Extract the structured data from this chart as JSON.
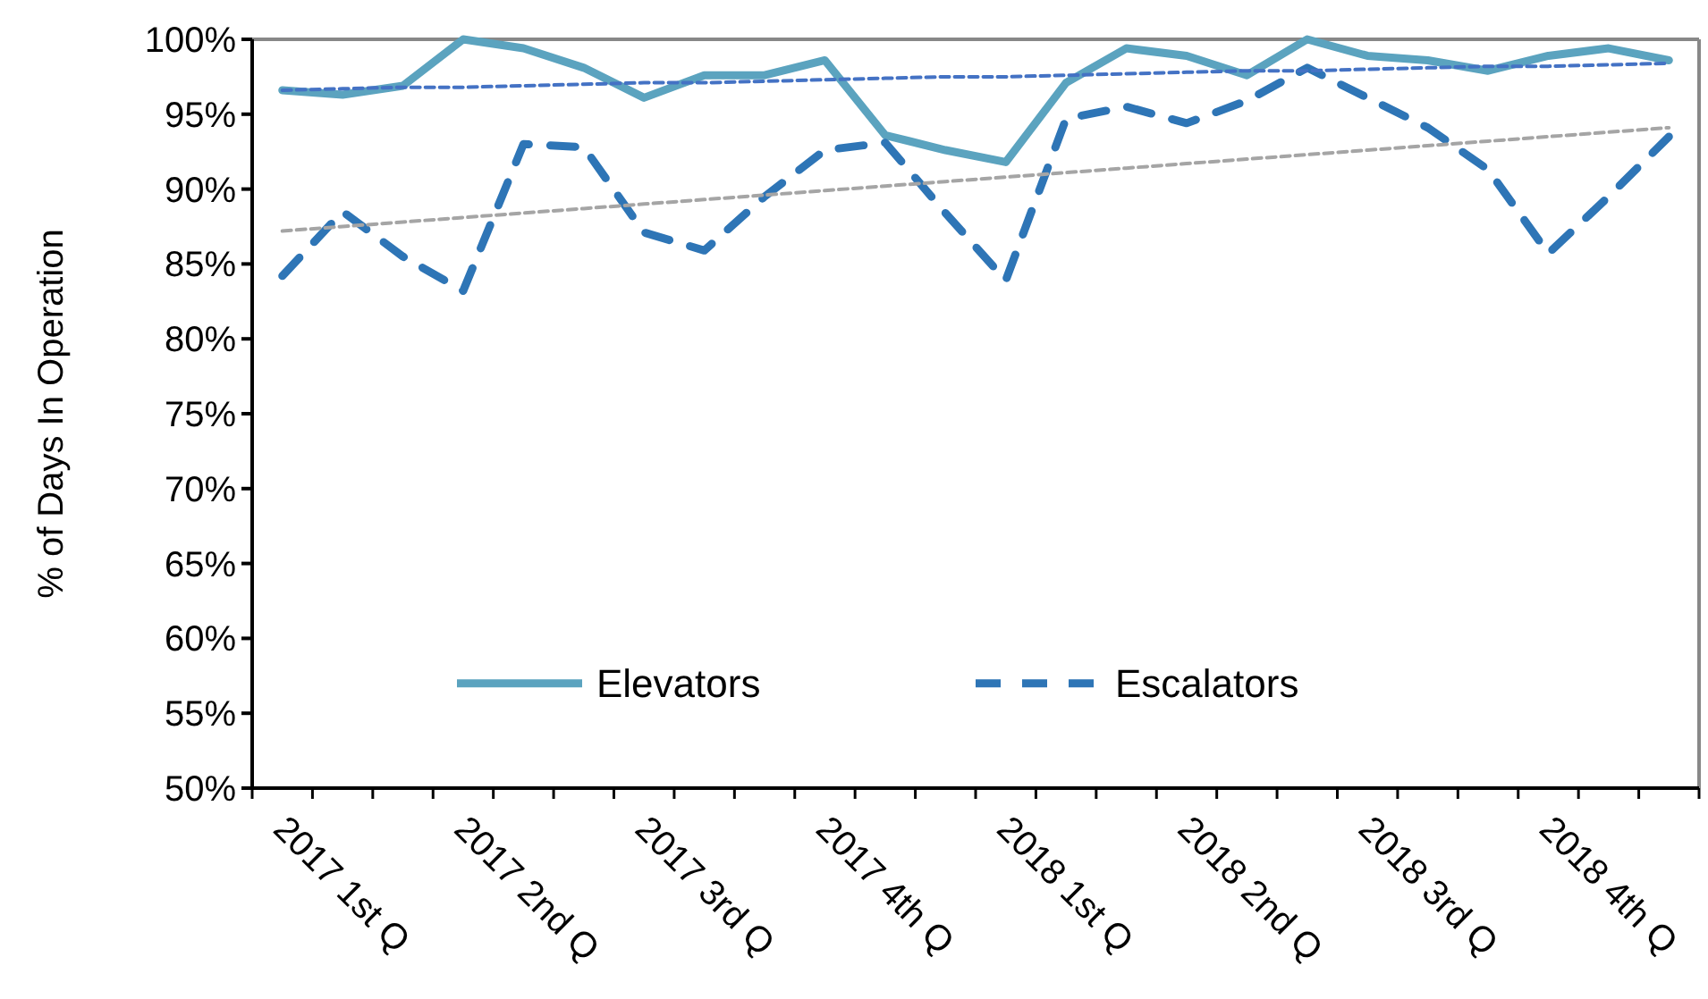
{
  "chart_data": {
    "type": "line",
    "ylabel": "% of Days In Operation",
    "categories": [
      "2017 1st Q",
      null,
      null,
      "2017 2nd Q",
      null,
      null,
      "2017 3rd Q",
      null,
      null,
      "2017 4th Q",
      null,
      null,
      "2018 1st Q",
      null,
      null,
      "2018 2nd Q",
      null,
      null,
      "2018 3rd Q",
      null,
      null,
      "2018 4th Q",
      null,
      null
    ],
    "ylim": [
      50,
      100
    ],
    "yticks": [
      {
        "value": 50,
        "label": "50%"
      },
      {
        "value": 55,
        "label": "55%"
      },
      {
        "value": 60,
        "label": "60%"
      },
      {
        "value": 65,
        "label": "65%"
      },
      {
        "value": 70,
        "label": "70%"
      },
      {
        "value": 75,
        "label": "75%"
      },
      {
        "value": 80,
        "label": "80%"
      },
      {
        "value": 85,
        "label": "85%"
      },
      {
        "value": 90,
        "label": "90%"
      },
      {
        "value": 95,
        "label": "95%"
      },
      {
        "value": 100,
        "label": "100%"
      }
    ],
    "grid": false,
    "legend": "bottom",
    "series": [
      {
        "name": "Elevators",
        "color": "#5ba3bf",
        "line_style": "solid",
        "values": [
          96.6,
          96.3,
          96.9,
          100,
          99.4,
          98.1,
          96.1,
          97.6,
          97.6,
          98.6,
          93.6,
          92.6,
          91.8,
          97.1,
          99.4,
          98.9,
          97.6,
          100,
          98.9,
          98.6,
          97.9,
          98.9,
          99.4,
          98.6
        ]
      },
      {
        "name": "Escalators",
        "color": "#2e75b6",
        "line_style": "dashed",
        "values": [
          84.2,
          88.5,
          85.5,
          83.2,
          93.0,
          92.8,
          87.1,
          85.9,
          89.5,
          92.6,
          93.1,
          88.4,
          83.9,
          94.7,
          95.5,
          94.4,
          95.9,
          98.1,
          96.1,
          94.1,
          91.3,
          85.7,
          89.5,
          93.5
        ]
      },
      {
        "color": "#4472c4",
        "line_style": "dotted",
        "values": [
          96.6,
          96.7,
          96.8,
          96.8,
          96.9,
          97.0,
          97.1,
          97.1,
          97.2,
          97.3,
          97.4,
          97.5,
          97.5,
          97.6,
          97.7,
          97.8,
          97.9,
          97.9,
          98.0,
          98.1,
          98.2,
          98.2,
          98.3,
          98.4
        ]
      },
      {
        "color": "#a5a5a5",
        "line_style": "dotted",
        "values": [
          87.2,
          87.5,
          87.8,
          88.1,
          88.4,
          88.7,
          89.0,
          89.3,
          89.6,
          89.9,
          90.2,
          90.5,
          90.8,
          91.1,
          91.4,
          91.7,
          92.0,
          92.3,
          92.6,
          92.9,
          93.2,
          93.5,
          93.8,
          94.1
        ]
      }
    ]
  }
}
